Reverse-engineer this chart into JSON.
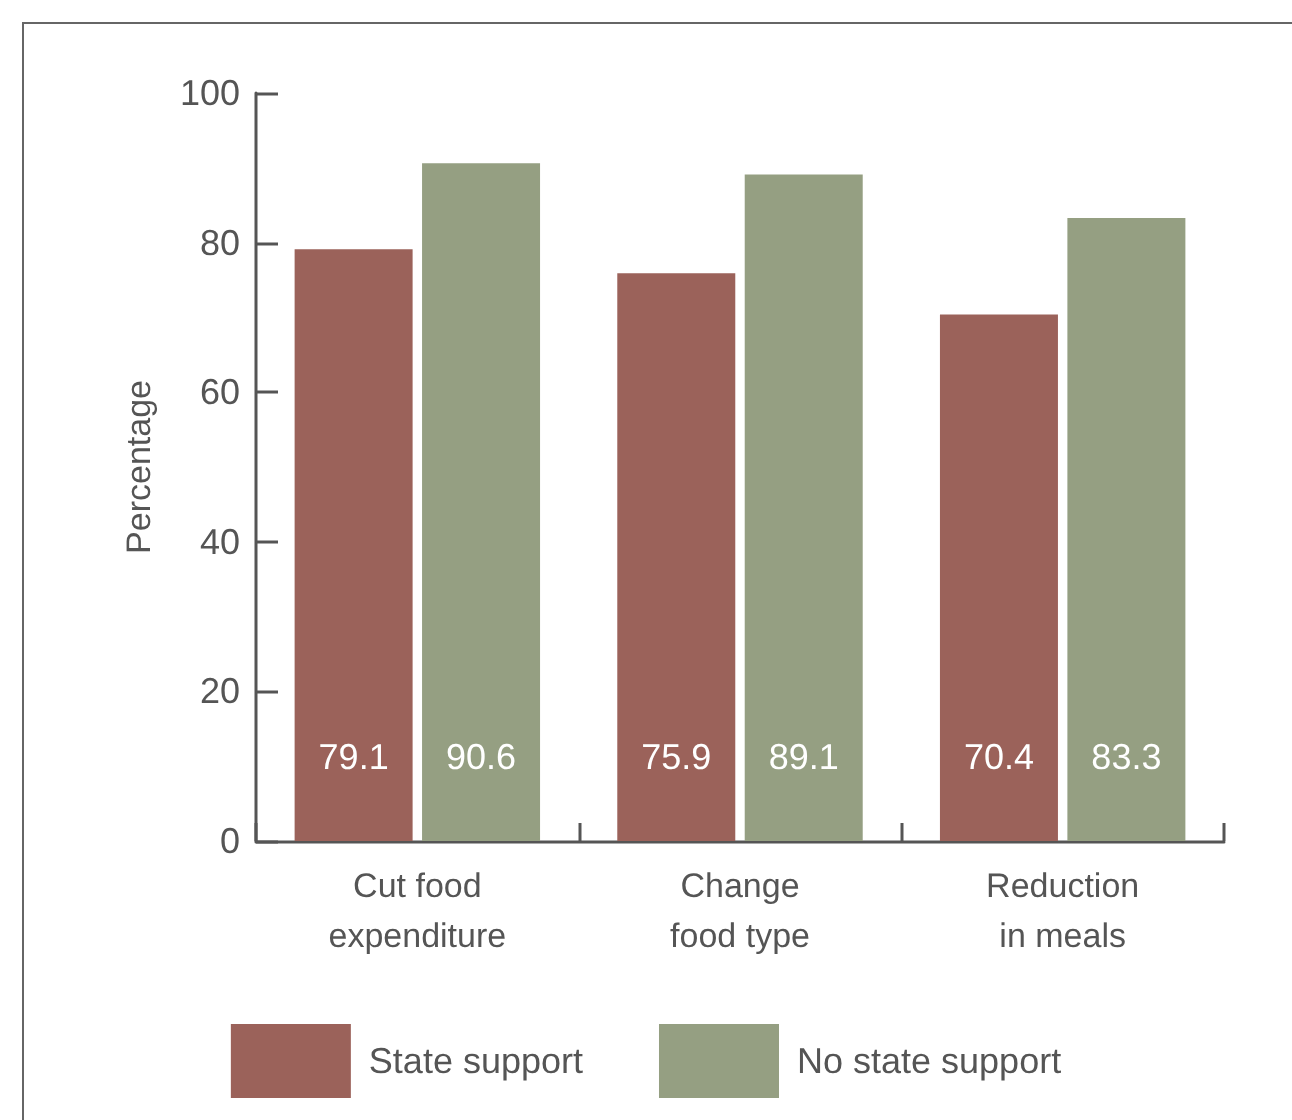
{
  "chart_data": {
    "type": "bar",
    "categories": [
      "Cut food\nexpenditure",
      "Change\nfood type",
      "Reduction\nin meals"
    ],
    "series": [
      {
        "name": "State support",
        "color": "#9b625a",
        "values": [
          79.1,
          75.9,
          70.4
        ]
      },
      {
        "name": "No state support",
        "color": "#959f82",
        "values": [
          90.6,
          89.1,
          83.3
        ]
      }
    ],
    "ylabel": "Percentage",
    "ylim": [
      0,
      100
    ],
    "yticks": [
      0,
      20,
      40,
      60,
      80,
      100
    ],
    "data_labels": true,
    "legend": "bottom",
    "grid": false
  }
}
